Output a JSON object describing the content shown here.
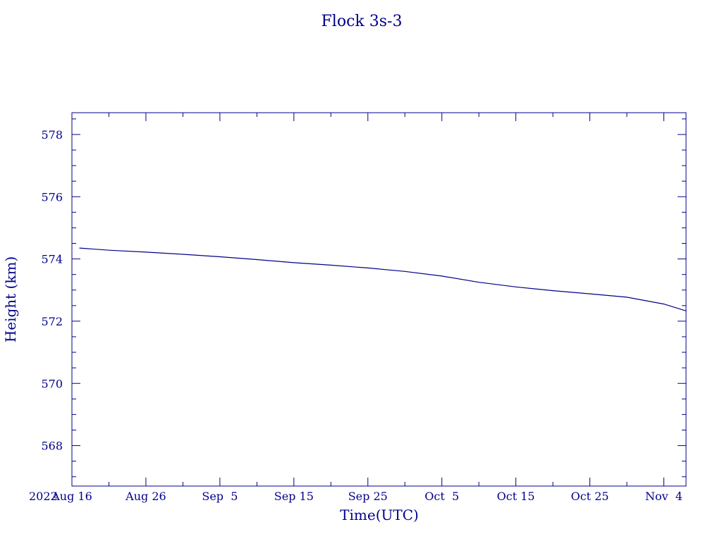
{
  "chart_data": {
    "type": "line",
    "title": "Flock 3s-3",
    "xlabel": "Time(UTC)",
    "ylabel": "Height (km)",
    "x_start_label": "2022",
    "xlim": [
      "2022-08-16",
      "2022-11-07"
    ],
    "ylim": [
      566.7,
      578.7
    ],
    "x_ticks": [
      {
        "date": "2022-08-16",
        "label": "Aug 16"
      },
      {
        "date": "2022-08-26",
        "label": "Aug 26"
      },
      {
        "date": "2022-09-05",
        "label": "Sep  5"
      },
      {
        "date": "2022-09-15",
        "label": "Sep 15"
      },
      {
        "date": "2022-09-25",
        "label": "Sep 25"
      },
      {
        "date": "2022-10-05",
        "label": "Oct  5"
      },
      {
        "date": "2022-10-15",
        "label": "Oct 15"
      },
      {
        "date": "2022-10-25",
        "label": "Oct 25"
      },
      {
        "date": "2022-11-04",
        "label": "Nov  4"
      }
    ],
    "y_ticks": [
      568,
      570,
      572,
      574,
      576,
      578
    ],
    "series": [
      {
        "color": "#00008b",
        "x": [
          "2022-08-17",
          "2022-08-21",
          "2022-08-26",
          "2022-08-31",
          "2022-09-05",
          "2022-09-10",
          "2022-09-15",
          "2022-09-20",
          "2022-09-25",
          "2022-09-30",
          "2022-10-05",
          "2022-10-10",
          "2022-10-15",
          "2022-10-20",
          "2022-10-25",
          "2022-10-30",
          "2022-11-04",
          "2022-11-07"
        ],
        "y": [
          574.35,
          574.28,
          574.22,
          574.15,
          574.07,
          573.98,
          573.88,
          573.8,
          573.71,
          573.6,
          573.45,
          573.25,
          573.1,
          572.98,
          572.88,
          572.77,
          572.55,
          572.33
        ]
      }
    ]
  }
}
